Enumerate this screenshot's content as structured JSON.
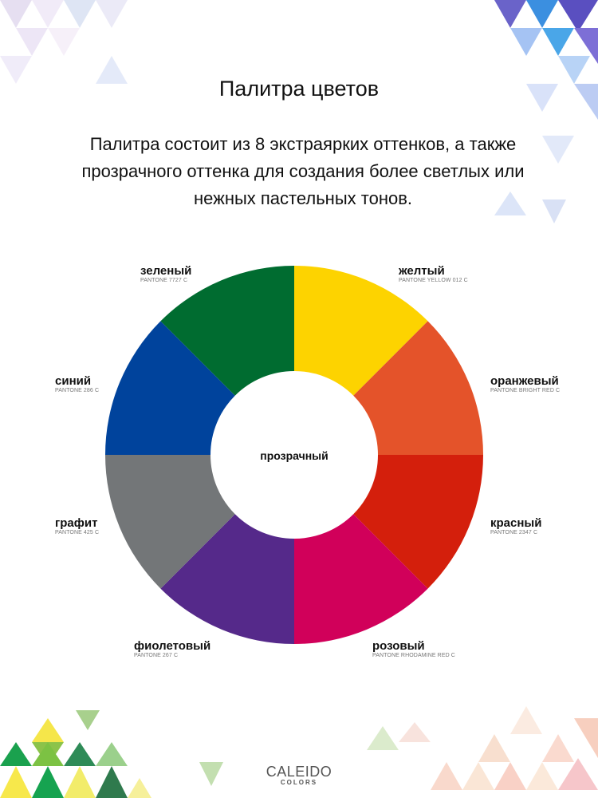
{
  "title": "Палитра цветов",
  "subtitle": "Палитра состоит из 8 экстраярких оттенков, а также прозрачного оттенка для создания более светлых или нежных пастельных тонов.",
  "center_label": "прозрачный",
  "segments": [
    {
      "name": "желтый",
      "pantone": "PANTONE YELLOW 012 C",
      "color": "#FDD300"
    },
    {
      "name": "оранжевый",
      "pantone": "PANTONE BRIGHT RED C",
      "color": "#E4532A"
    },
    {
      "name": "красный",
      "pantone": "PANTONE 2347 C",
      "color": "#D41F0C"
    },
    {
      "name": "розовый",
      "pantone": "PANTONE RHODAMINE RED C",
      "color": "#D1005A"
    },
    {
      "name": "фиолетовый",
      "pantone": "PANTONE 267 C",
      "color": "#55298A"
    },
    {
      "name": "графит",
      "pantone": "PANTONE 425 C",
      "color": "#737678"
    },
    {
      "name": "синий",
      "pantone": "PANTONE 286 C",
      "color": "#00439C"
    },
    {
      "name": "зеленый",
      "pantone": "PANTONE 7727 C",
      "color": "#006C30"
    }
  ],
  "logo": {
    "line1": "CALEIDO",
    "line2": "COLORS"
  }
}
